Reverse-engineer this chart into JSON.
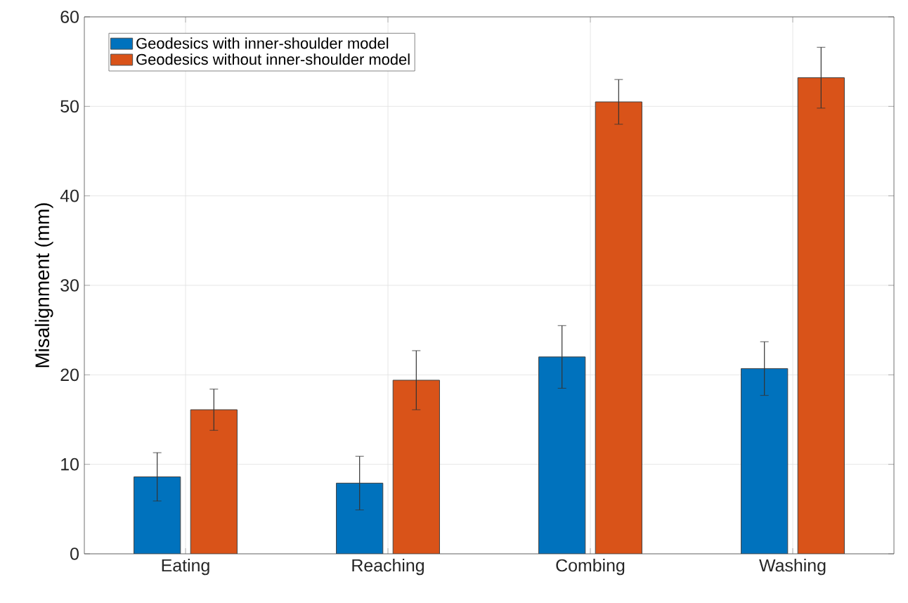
{
  "chart_data": {
    "type": "bar",
    "ylabel": "Misalignment (mm)",
    "categories": [
      "Eating",
      "Reaching",
      "Combing",
      "Washing"
    ],
    "series": [
      {
        "name": "Geodesics with inner-shoulder model",
        "color": "#0072bd",
        "values": [
          8.6,
          7.9,
          22.0,
          20.7
        ],
        "errors": [
          2.7,
          3.0,
          3.5,
          3.0
        ]
      },
      {
        "name": "Geodesics without inner-shoulder model",
        "color": "#d95319",
        "values": [
          16.1,
          19.4,
          50.5,
          53.2
        ],
        "errors": [
          2.3,
          3.3,
          2.5,
          3.4
        ]
      }
    ],
    "ylim": [
      0,
      60
    ],
    "yticks": [
      0,
      10,
      20,
      30,
      40,
      50,
      60
    ],
    "grid": true,
    "legend": "top left"
  }
}
